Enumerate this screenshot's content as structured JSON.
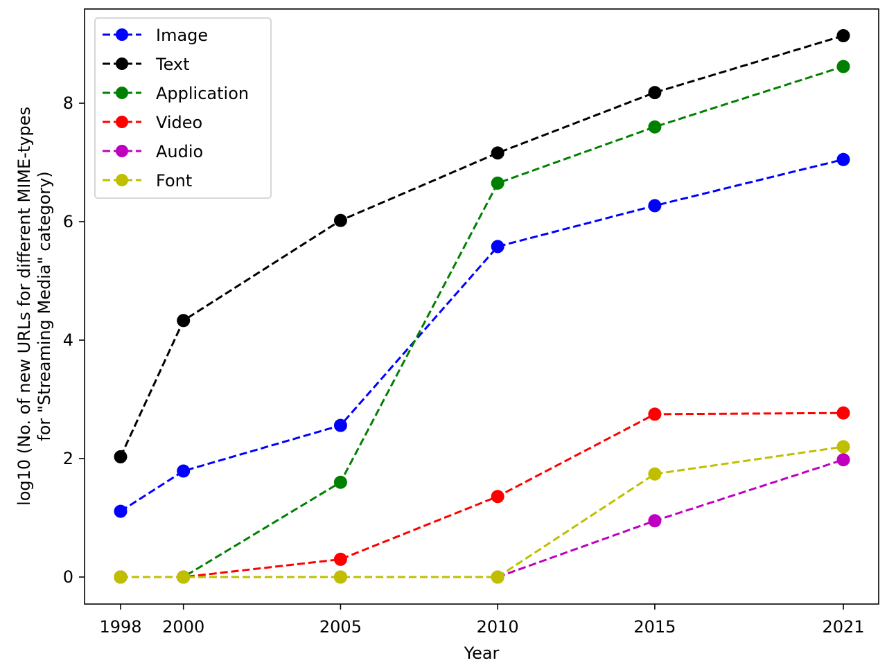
{
  "chart_data": {
    "type": "line",
    "xlabel": "Year",
    "ylabel_lines": [
      "log10 (No. of new URLs for different MIME-types",
      "for \"Streaming Media\" category)"
    ],
    "categories": [
      "1998",
      "2000",
      "2005",
      "2010",
      "2015",
      "2021"
    ],
    "yticks": [
      0,
      2,
      4,
      6,
      8
    ],
    "ylim": [
      -0.46,
      9.58
    ],
    "grid": false,
    "legend_position": "upper-left",
    "series": [
      {
        "name": "Image",
        "color": "#0000ff",
        "values": [
          1.11,
          1.79,
          2.56,
          5.58,
          6.27,
          7.05
        ]
      },
      {
        "name": "Text",
        "color": "#000000",
        "values": [
          2.03,
          4.33,
          6.02,
          7.16,
          8.18,
          9.14
        ]
      },
      {
        "name": "Application",
        "color": "#008000",
        "values": [
          0,
          0,
          1.6,
          6.65,
          7.6,
          8.62
        ]
      },
      {
        "name": "Video",
        "color": "#ff0000",
        "values": [
          0,
          0,
          0.3,
          1.36,
          2.75,
          2.77
        ]
      },
      {
        "name": "Audio",
        "color": "#bf00bf",
        "values": [
          0,
          0,
          0,
          0,
          0.95,
          1.98
        ]
      },
      {
        "name": "Font",
        "color": "#bfbf00",
        "values": [
          0,
          0,
          0,
          0,
          1.74,
          2.2
        ]
      }
    ]
  }
}
